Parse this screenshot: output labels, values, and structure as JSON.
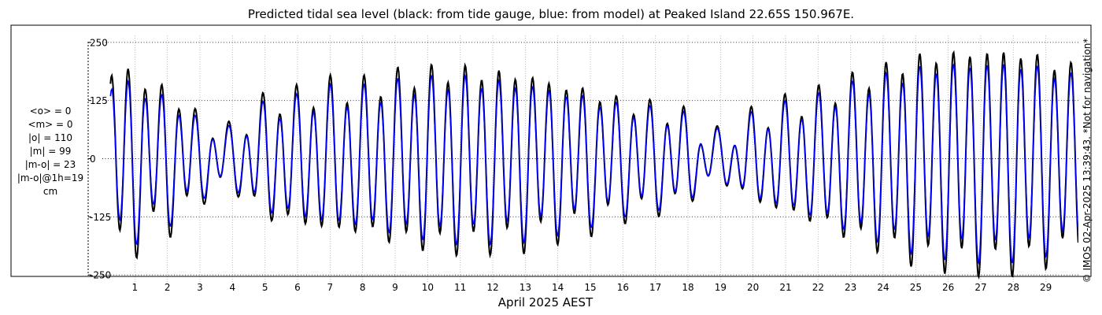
{
  "title": "Predicted tidal sea level (black: from tide gauge, blue: from model) at Peaked Island 22.65S 150.967E.",
  "credit": "© IMOS 02-Apr-2025 13:39:43. *Not for navigation*",
  "stats": [
    "<o> = 0",
    "<m> = 0",
    "|o| = 110",
    "|m| = 99",
    "|m-o| = 23",
    "|m-o|@1h=19",
    "cm"
  ],
  "colors": {
    "observed": "#000000",
    "model": "#0000ff",
    "grid": "#4d4d4d"
  },
  "chart_data": {
    "type": "line",
    "title": "Predicted tidal sea level (black: from tide gauge, blue: from model) at Peaked Island 22.65S 150.967E.",
    "xlabel": "April 2025 AEST",
    "ylabel": "",
    "xlim": [
      0,
      30
    ],
    "ylim": [
      -265,
      265
    ],
    "x_ticks": [
      1,
      2,
      3,
      4,
      5,
      6,
      7,
      8,
      9,
      10,
      11,
      12,
      13,
      14,
      15,
      16,
      17,
      18,
      19,
      20,
      21,
      22,
      23,
      24,
      25,
      26,
      27,
      28,
      29
    ],
    "y_ticks": [
      250,
      125,
      0,
      -125,
      -250
    ],
    "y_tick_labels": [
      "250",
      "125",
      "0",
      "-125",
      "-250"
    ],
    "grid": true,
    "sample_interval_days": 0.0208,
    "x_start": 0.25,
    "x_end": 30,
    "semidiurnal_period_days": 0.5175,
    "semidiurnal_phase_days": 0.28,
    "diurnal_period_days": 1.0758,
    "diurnal_phase_days": 0.56,
    "semidiurnal_envelope": {
      "days": [
        0.25,
        1,
        1.5,
        2,
        2.5,
        3,
        3.5,
        4,
        4.5,
        5,
        6,
        7,
        8,
        9,
        10,
        11,
        12,
        13,
        14,
        15,
        16,
        17,
        18,
        18.5,
        19,
        19.5,
        20,
        21,
        22,
        23,
        24,
        25,
        26,
        27,
        28,
        29,
        30
      ],
      "observed": [
        180,
        190,
        140,
        150,
        110,
        80,
        60,
        55,
        80,
        120,
        130,
        150,
        150,
        170,
        180,
        185,
        180,
        175,
        155,
        140,
        115,
        105,
        85,
        50,
        40,
        60,
        85,
        110,
        130,
        160,
        185,
        210,
        220,
        225,
        225,
        210,
        185
      ],
      "model": [
        150,
        165,
        120,
        130,
        95,
        70,
        55,
        50,
        72,
        105,
        115,
        135,
        135,
        150,
        160,
        165,
        160,
        155,
        140,
        125,
        105,
        95,
        78,
        48,
        40,
        55,
        78,
        100,
        118,
        145,
        165,
        185,
        195,
        200,
        200,
        188,
        165
      ]
    },
    "diurnal_amplitude_observed": 30,
    "diurnal_amplitude_model": 25,
    "series": [
      {
        "name": "black: from tide gauge",
        "color": "#000000"
      },
      {
        "name": "blue: from model",
        "color": "#0000ff"
      }
    ]
  }
}
